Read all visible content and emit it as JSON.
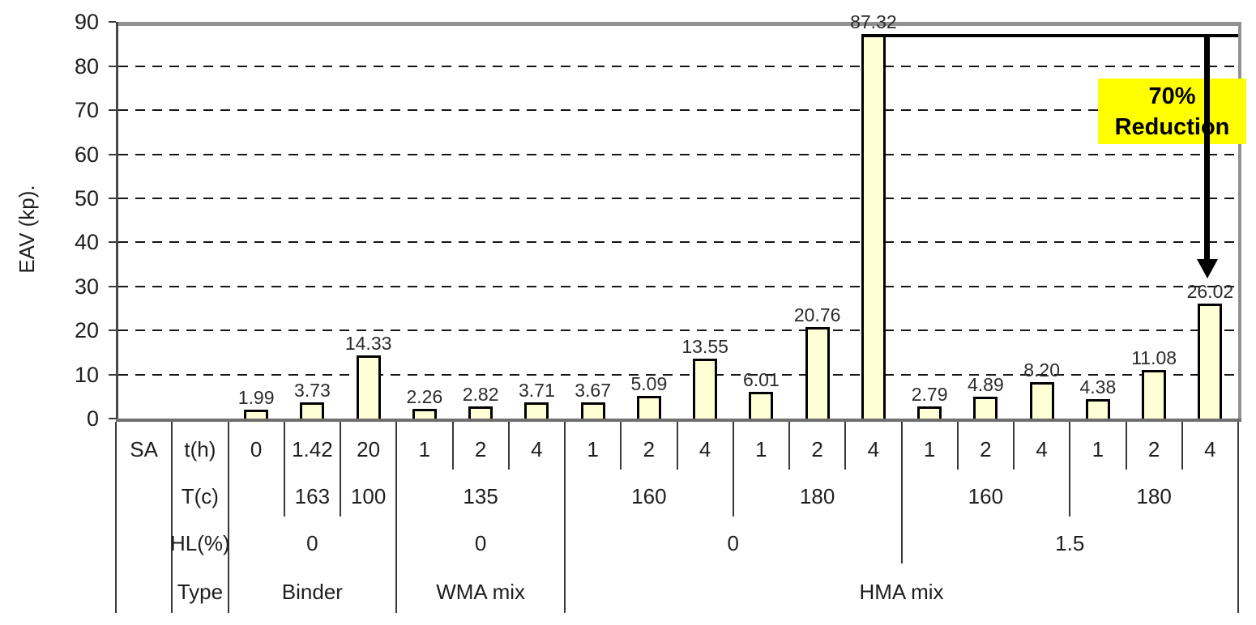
{
  "chart_data": {
    "type": "bar",
    "title": "",
    "ylabel": "EAV (kp).",
    "xlabel": "",
    "ylim": [
      0,
      90
    ],
    "ytick_step": 10,
    "yticks": [
      0,
      10,
      20,
      30,
      40,
      50,
      60,
      70,
      80,
      90
    ],
    "grid": "horizontal dashed every 10, top/right border solid gray",
    "legend": "none",
    "bar_fill_color": "#FFFFD6",
    "bar_border_color": "#000000",
    "series": [
      {
        "name": "EAV",
        "values": [
          1.99,
          3.73,
          14.33,
          2.26,
          2.82,
          3.71,
          3.67,
          5.09,
          13.55,
          6.01,
          20.76,
          87.32,
          2.79,
          4.89,
          8.2,
          4.38,
          11.08,
          26.02
        ]
      }
    ],
    "bar_value_labels": [
      "1.99",
      "3.73",
      "14.33",
      "2.26",
      "2.82",
      "3.71",
      "3.67",
      "5.09",
      "13.55",
      "6.01",
      "20.76",
      "87.32",
      "2.79",
      "4.89",
      "8.20",
      "4.38",
      "11.08",
      "26.02"
    ],
    "categories_t_h": [
      "0",
      "1.42",
      "20",
      "1",
      "2",
      "4",
      "1",
      "2",
      "4",
      "1",
      "2",
      "4",
      "1",
      "2",
      "4",
      "1",
      "2",
      "4"
    ]
  },
  "y_axis": {
    "title": "EAV (kp)."
  },
  "category_table": {
    "corner_label": "SA",
    "rows": [
      {
        "label": "t(h)",
        "cells": [
          {
            "text": "0",
            "span": 1
          },
          {
            "text": "1.42",
            "span": 1
          },
          {
            "text": "20",
            "span": 1
          },
          {
            "text": "1",
            "span": 1
          },
          {
            "text": "2",
            "span": 1
          },
          {
            "text": "4",
            "span": 1
          },
          {
            "text": "1",
            "span": 1
          },
          {
            "text": "2",
            "span": 1
          },
          {
            "text": "4",
            "span": 1
          },
          {
            "text": "1",
            "span": 1
          },
          {
            "text": "2",
            "span": 1
          },
          {
            "text": "4",
            "span": 1
          },
          {
            "text": "1",
            "span": 1
          },
          {
            "text": "2",
            "span": 1
          },
          {
            "text": "4",
            "span": 1
          },
          {
            "text": "1",
            "span": 1
          },
          {
            "text": "2",
            "span": 1
          },
          {
            "text": "4",
            "span": 1
          }
        ]
      },
      {
        "label": "T(c)",
        "cells": [
          {
            "text": "",
            "span": 1
          },
          {
            "text": "163",
            "span": 1
          },
          {
            "text": "100",
            "span": 1
          },
          {
            "text": "135",
            "span": 3
          },
          {
            "text": "160",
            "span": 3
          },
          {
            "text": "180",
            "span": 3
          },
          {
            "text": "160",
            "span": 3
          },
          {
            "text": "180",
            "span": 3
          }
        ]
      },
      {
        "label": "HL(%)",
        "cells": [
          {
            "text": "0",
            "span": 3
          },
          {
            "text": "0",
            "span": 3
          },
          {
            "text": "0",
            "span": 6
          },
          {
            "text": "1.5",
            "span": 6
          }
        ]
      },
      {
        "label": "Type",
        "cells": [
          {
            "text": "Binder",
            "span": 3
          },
          {
            "text": "WMA mix",
            "span": 3
          },
          {
            "text": "HMA mix",
            "span": 12
          }
        ]
      }
    ]
  },
  "annotation": {
    "line1": "70%",
    "line2": "Reduction",
    "highlight_color": "#FFFF00",
    "arrow_color": "#000000",
    "from_value": "87.32",
    "to_value": "26.02"
  }
}
